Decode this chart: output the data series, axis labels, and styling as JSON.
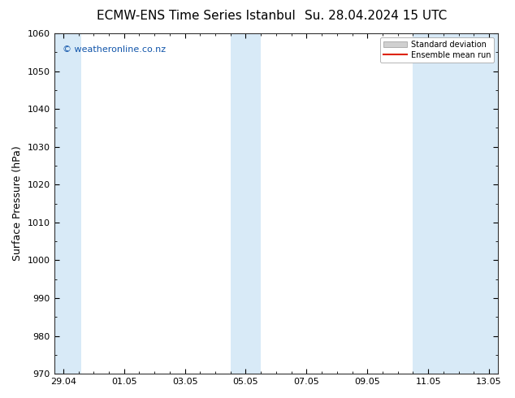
{
  "title_left": "ECMW-ENS Time Series Istanbul",
  "title_right": "Su. 28.04.2024 15 UTC",
  "ylabel": "Surface Pressure (hPa)",
  "ylim": [
    970,
    1060
  ],
  "yticks": [
    970,
    980,
    990,
    1000,
    1010,
    1020,
    1030,
    1040,
    1050,
    1060
  ],
  "xtick_labels": [
    "29.04",
    "01.05",
    "03.05",
    "05.05",
    "07.05",
    "09.05",
    "11.05",
    "13.05"
  ],
  "xtick_positions": [
    0,
    2,
    4,
    6,
    8,
    10,
    12,
    14
  ],
  "xlim": [
    -0.3,
    14.3
  ],
  "shaded_bands": [
    {
      "x_start": -0.3,
      "x_end": 0.6,
      "color": "#d8eaf7"
    },
    {
      "x_start": 5.5,
      "x_end": 6.5,
      "color": "#d8eaf7"
    },
    {
      "x_start": 11.5,
      "x_end": 14.3,
      "color": "#d8eaf7"
    }
  ],
  "legend_std_color": "#d0d0d0",
  "legend_std_edge": "#999999",
  "legend_mean_color": "#dd2200",
  "watermark": "© weatheronline.co.nz",
  "watermark_color": "#1155aa",
  "background_color": "#ffffff",
  "plot_bg_color": "#ffffff",
  "title_fontsize": 11,
  "ylabel_fontsize": 9,
  "tick_fontsize": 8,
  "legend_fontsize": 7,
  "watermark_fontsize": 8
}
